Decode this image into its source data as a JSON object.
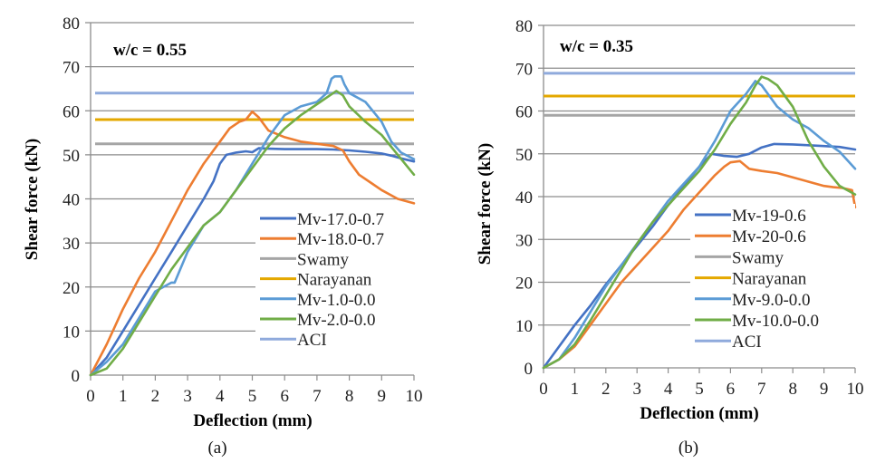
{
  "chart_data": [
    {
      "type": "line",
      "id": "a",
      "caption": "(a)",
      "annotation": "w/c = 0.55",
      "xlabel": "Deflection (mm)",
      "ylabel": "Shear force (kN)",
      "xlim": [
        0,
        10
      ],
      "ylim": [
        0,
        80
      ],
      "xticks": [
        0,
        1,
        2,
        3,
        4,
        5,
        6,
        7,
        8,
        9,
        10
      ],
      "yticks": [
        0,
        10,
        20,
        30,
        40,
        50,
        60,
        70,
        80
      ],
      "grid": "horizontal",
      "legend_position": "bottom-right",
      "series": [
        {
          "name": "Mv-17.0-0.7",
          "color": "#4472C4",
          "kind": "curve",
          "x": [
            0,
            0.5,
            1,
            1.5,
            2,
            2.5,
            3,
            3.5,
            3.8,
            4.0,
            4.2,
            4.5,
            4.8,
            5.0,
            5.2,
            5.5,
            6,
            6.5,
            7,
            7.5,
            8,
            8.5,
            9,
            9.3,
            9.6,
            10
          ],
          "y": [
            0,
            4,
            10,
            16,
            22,
            28,
            34,
            40,
            44,
            48,
            50,
            50.5,
            50.8,
            50.6,
            51.5,
            51.4,
            51.3,
            51.3,
            51.3,
            51.2,
            51,
            50.7,
            50.3,
            49.8,
            49.2,
            48.5
          ]
        },
        {
          "name": "Mv-18.0-0.7",
          "color": "#ED7D31",
          "kind": "curve",
          "x": [
            0,
            0.5,
            1,
            1.5,
            2,
            2.5,
            3,
            3.5,
            4,
            4.3,
            4.6,
            4.8,
            5.0,
            5.2,
            5.5,
            6,
            6.5,
            7,
            7.5,
            7.8,
            8,
            8.3,
            8.7,
            9,
            9.5,
            10
          ],
          "y": [
            0,
            7,
            15,
            22,
            28,
            35,
            42,
            48,
            53,
            56,
            57.5,
            58,
            59.8,
            58.5,
            55.5,
            54,
            53,
            52.5,
            52,
            51,
            48.5,
            45.5,
            43.5,
            42,
            40,
            39
          ]
        },
        {
          "name": "Swamy",
          "color": "#A5A5A5",
          "kind": "constant",
          "value": 52.5
        },
        {
          "name": "Narayanan",
          "color": "#E4A800",
          "kind": "constant",
          "value": 58
        },
        {
          "name": "Mv-1.0-0.0",
          "color": "#5B9BD5",
          "kind": "curve",
          "x": [
            0,
            0.5,
            1,
            1.5,
            2,
            2.5,
            2.6,
            3,
            3.5,
            4,
            4.5,
            5,
            5.5,
            6,
            6.5,
            7,
            7.3,
            7.45,
            7.55,
            7.75,
            7.85,
            8.0,
            8.5,
            9,
            9.3,
            9.6,
            10
          ],
          "y": [
            0,
            3,
            7,
            13,
            19,
            21,
            21,
            28,
            34,
            37,
            42,
            48,
            54,
            59,
            61,
            62,
            64,
            67.3,
            67.8,
            67.8,
            66,
            64,
            62,
            57.5,
            53,
            50.5,
            49
          ]
        },
        {
          "name": "Mv-2.0-0.0",
          "color": "#70AD47",
          "kind": "curve",
          "x": [
            0,
            0.5,
            1,
            1.5,
            2,
            2.5,
            3,
            3.5,
            4,
            4.5,
            5,
            5.5,
            6,
            6.5,
            7,
            7.3,
            7.6,
            7.8,
            8.0,
            8.5,
            9,
            9.5,
            10
          ],
          "y": [
            0,
            1.5,
            6,
            12,
            18,
            24,
            29,
            34,
            37,
            42,
            47,
            52,
            56,
            59,
            61.5,
            63,
            64.5,
            63.5,
            61,
            57.5,
            54.5,
            50,
            45.5
          ]
        },
        {
          "name": "ACI",
          "color": "#8FAADC",
          "kind": "constant",
          "value": 64
        }
      ]
    },
    {
      "type": "line",
      "id": "b",
      "caption": "(b)",
      "annotation": "w/c = 0.35",
      "xlabel": "Deflection (mm)",
      "ylabel": "Shear force (kN)",
      "xlim": [
        0,
        10
      ],
      "ylim": [
        0,
        80
      ],
      "xticks": [
        0,
        1,
        2,
        3,
        4,
        5,
        6,
        7,
        8,
        9,
        10
      ],
      "yticks": [
        0,
        10,
        20,
        30,
        40,
        50,
        60,
        70,
        80
      ],
      "grid": "horizontal",
      "legend_position": "bottom-right",
      "series": [
        {
          "name": "Mv-19-0.6",
          "color": "#4472C4",
          "kind": "curve",
          "x": [
            0,
            0.5,
            1,
            1.5,
            2,
            2.5,
            3,
            3.5,
            4,
            4.5,
            5,
            5.4,
            5.8,
            6.2,
            6.6,
            7,
            7.4,
            8,
            8.5,
            9,
            9.5,
            10
          ],
          "y": [
            0,
            5,
            10,
            14.5,
            19.5,
            24,
            28.5,
            33,
            38,
            42.5,
            47,
            50,
            49.5,
            49.3,
            50,
            51.5,
            52.3,
            52.2,
            52,
            51.8,
            51.6,
            51
          ]
        },
        {
          "name": "Mv-20-0.6",
          "color": "#ED7D31",
          "kind": "curve",
          "x": [
            0,
            0.5,
            1,
            1.5,
            2,
            2.5,
            3,
            3.5,
            4,
            4.5,
            5,
            5.5,
            5.8,
            6.0,
            6.3,
            6.6,
            7,
            7.5,
            8,
            8.5,
            9,
            9.3,
            9.6,
            9.9,
            10
          ],
          "y": [
            0,
            2,
            5,
            10,
            15,
            20,
            24,
            28,
            32,
            37,
            41,
            45,
            47,
            48,
            48.3,
            46.5,
            46,
            45.5,
            44.5,
            43.5,
            42.5,
            42.2,
            42,
            41.5,
            37.5
          ]
        },
        {
          "name": "Swamy",
          "color": "#A5A5A5",
          "kind": "constant",
          "value": 59
        },
        {
          "name": "Narayanan",
          "color": "#E4A800",
          "kind": "constant",
          "value": 63.5
        },
        {
          "name": "Mv-9.0-0.0",
          "color": "#5B9BD5",
          "kind": "curve",
          "x": [
            0,
            0.5,
            1,
            1.5,
            2,
            2.5,
            3,
            3.5,
            4,
            4.5,
            5,
            5.5,
            6,
            6.5,
            6.8,
            7.0,
            7.2,
            7.5,
            8,
            8.5,
            9,
            9.5,
            10
          ],
          "y": [
            0,
            2,
            7,
            13,
            19,
            24,
            29,
            34,
            39,
            43,
            47,
            53,
            60,
            64,
            67,
            66,
            64,
            61,
            58,
            56,
            53,
            50.5,
            46.5
          ]
        },
        {
          "name": "Mv-10.0-0.0",
          "color": "#70AD47",
          "kind": "curve",
          "x": [
            0,
            0.5,
            1,
            1.5,
            2,
            2.5,
            3,
            3.5,
            4,
            4.5,
            5,
            5.5,
            6,
            6.5,
            6.8,
            7.0,
            7.2,
            7.5,
            8,
            8.5,
            9,
            9.5,
            10
          ],
          "y": [
            0,
            2,
            5.5,
            11,
            17,
            23,
            29,
            34,
            38,
            42,
            46,
            51,
            57,
            62,
            66,
            68,
            67.5,
            66,
            61,
            53,
            47,
            42.5,
            40.5
          ]
        },
        {
          "name": "ACI",
          "color": "#8FAADC",
          "kind": "constant",
          "value": 68.8
        }
      ]
    }
  ]
}
